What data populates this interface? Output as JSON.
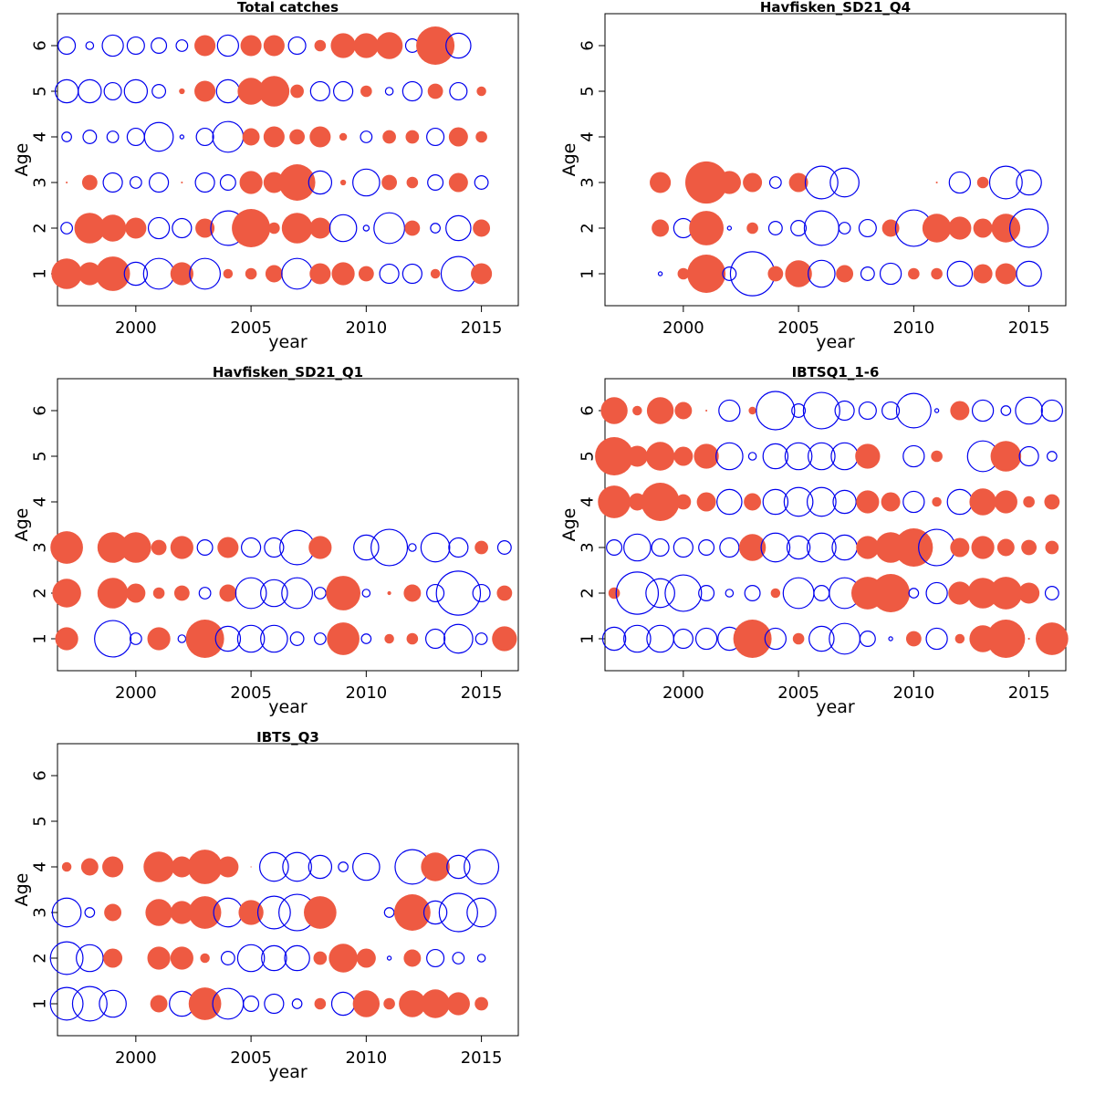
{
  "figure": {
    "colors": {
      "positive": "#ee5a42",
      "negative": "#0000ee",
      "frame": "#000000"
    }
  },
  "chart_data": [
    {
      "type": "scatter",
      "subtype": "bubble",
      "title": "Total catches",
      "xlabel": "year",
      "ylabel": "Age",
      "xlim": [
        1996.6,
        2016.6
      ],
      "ylim": [
        0.3,
        6.7
      ],
      "xticks": [
        2000,
        2005,
        2010,
        2015
      ],
      "yticks": [
        1,
        2,
        3,
        4,
        5,
        6
      ],
      "x": [
        1997,
        1998,
        1999,
        2000,
        2001,
        2002,
        2003,
        2004,
        2005,
        2006,
        2007,
        2008,
        2009,
        2010,
        2011,
        2012,
        2013,
        2014,
        2015
      ],
      "rows": [
        {
          "age": 1,
          "r": [
            0.8,
            0.6,
            0.9,
            -0.6,
            -0.8,
            0.6,
            -0.8,
            0.25,
            0.3,
            0.45,
            -0.8,
            0.55,
            0.6,
            0.4,
            -0.5,
            -0.5,
            0.25,
            -0.9,
            0.55
          ]
        },
        {
          "age": 2,
          "r": [
            -0.3,
            0.8,
            0.7,
            0.55,
            -0.55,
            -0.5,
            0.5,
            -0.9,
            1.0,
            0.3,
            0.8,
            0.55,
            -0.7,
            -0.15,
            -0.8,
            0.4,
            -0.25,
            -0.65,
            0.45
          ]
        },
        {
          "age": 3,
          "r": [
            0.05,
            0.4,
            -0.5,
            -0.3,
            -0.5,
            0.05,
            -0.5,
            -0.4,
            0.6,
            0.55,
            0.95,
            -0.6,
            0.15,
            -0.7,
            0.4,
            0.3,
            -0.4,
            0.5,
            -0.35
          ]
        },
        {
          "age": 4,
          "r": [
            -0.25,
            -0.35,
            -0.3,
            -0.45,
            -0.75,
            -0.1,
            -0.45,
            -0.8,
            0.45,
            0.55,
            0.4,
            0.55,
            0.2,
            -0.3,
            0.35,
            0.35,
            -0.45,
            0.5,
            0.3
          ]
        },
        {
          "age": 5,
          "r": [
            -0.6,
            -0.6,
            -0.45,
            -0.6,
            -0.35,
            0.15,
            0.55,
            -0.6,
            0.7,
            0.8,
            0.35,
            -0.5,
            -0.5,
            0.3,
            -0.2,
            -0.5,
            0.4,
            -0.45,
            0.25
          ]
        },
        {
          "age": 6,
          "r": [
            -0.45,
            -0.2,
            -0.55,
            -0.45,
            -0.4,
            -0.3,
            0.55,
            -0.55,
            0.55,
            0.55,
            -0.45,
            0.3,
            0.65,
            0.65,
            0.7,
            -0.35,
            1.0,
            -0.65,
            null
          ]
        }
      ]
    },
    {
      "type": "scatter",
      "subtype": "bubble",
      "title": "Havfisken_SD21_Q4",
      "xlabel": "year",
      "ylabel": "Age",
      "xlim": [
        1996.6,
        2016.6
      ],
      "ylim": [
        0.3,
        6.7
      ],
      "xticks": [
        2000,
        2005,
        2010,
        2015
      ],
      "yticks": [
        1,
        2,
        3,
        4,
        5,
        6
      ],
      "x": [
        1999,
        2000,
        2001,
        2002,
        2003,
        2004,
        2005,
        2006,
        2007,
        2008,
        2009,
        2010,
        2011,
        2012,
        2013,
        2014,
        2015
      ],
      "rows": [
        {
          "age": 1,
          "r": [
            -0.1,
            0.3,
            1.0,
            -0.35,
            -1.15,
            0.4,
            0.7,
            -0.7,
            0.45,
            -0.35,
            -0.55,
            0.3,
            0.3,
            -0.65,
            0.5,
            0.55,
            -0.65
          ]
        },
        {
          "age": 2,
          "r": [
            0.45,
            -0.5,
            0.9,
            -0.1,
            0.3,
            -0.35,
            -0.4,
            -0.9,
            -0.3,
            -0.45,
            0.45,
            -0.95,
            0.75,
            0.6,
            0.5,
            0.75,
            -1.0
          ]
        },
        {
          "age": 3,
          "r": [
            0.55,
            null,
            1.1,
            0.6,
            0.5,
            -0.3,
            0.5,
            -0.85,
            -0.75,
            null,
            null,
            null,
            0.05,
            -0.55,
            0.3,
            -0.85,
            -0.65
          ]
        }
      ]
    },
    {
      "type": "scatter",
      "subtype": "bubble",
      "title": "Havfisken_SD21_Q1",
      "xlabel": "year",
      "ylabel": "Age",
      "xlim": [
        1996.6,
        2016.6
      ],
      "ylim": [
        0.3,
        6.7
      ],
      "xticks": [
        2000,
        2005,
        2010,
        2015
      ],
      "yticks": [
        1,
        2,
        3,
        4,
        5,
        6
      ],
      "x": [
        1997,
        1999,
        2000,
        2001,
        2002,
        2003,
        2004,
        2005,
        2006,
        2007,
        2008,
        2009,
        2010,
        2011,
        2012,
        2013,
        2014,
        2015,
        2016
      ],
      "rows": [
        {
          "age": 1,
          "r": [
            0.6,
            -0.95,
            -0.3,
            0.6,
            -0.2,
            1.0,
            -0.65,
            -0.7,
            -0.7,
            -0.35,
            -0.3,
            0.85,
            -0.25,
            0.25,
            0.3,
            -0.5,
            -0.75,
            -0.3,
            0.65
          ]
        },
        {
          "age": 2,
          "r": [
            0.75,
            0.8,
            0.5,
            0.3,
            0.4,
            -0.3,
            0.45,
            -0.8,
            -0.7,
            -0.8,
            -0.3,
            0.9,
            -0.2,
            0.1,
            0.45,
            -0.45,
            -1.15,
            -0.45,
            0.4
          ]
        },
        {
          "age": 3,
          "r": [
            0.85,
            0.8,
            0.8,
            0.4,
            0.6,
            -0.4,
            0.55,
            -0.5,
            -0.5,
            -0.9,
            0.6,
            null,
            -0.65,
            -0.95,
            -0.2,
            -0.75,
            -0.5,
            0.35,
            -0.35
          ]
        }
      ]
    },
    {
      "type": "scatter",
      "subtype": "bubble",
      "title": "IBTSQ1_1-6",
      "xlabel": "year",
      "ylabel": "Age",
      "xlim": [
        1996.6,
        2016.6
      ],
      "ylim": [
        0.3,
        6.7
      ],
      "xticks": [
        2000,
        2005,
        2010,
        2015
      ],
      "yticks": [
        1,
        2,
        3,
        4,
        5,
        6
      ],
      "x": [
        1997,
        1998,
        1999,
        2000,
        2001,
        2002,
        2003,
        2004,
        2005,
        2006,
        2007,
        2008,
        2009,
        2010,
        2011,
        2012,
        2013,
        2014,
        2015,
        2016
      ],
      "rows": [
        {
          "age": 1,
          "r": [
            -0.6,
            -0.7,
            -0.7,
            -0.5,
            -0.55,
            -0.6,
            1.0,
            -0.55,
            0.3,
            -0.65,
            -0.8,
            -0.4,
            -0.1,
            0.4,
            -0.55,
            0.25,
            0.7,
            1.0,
            0.05,
            0.85
          ]
        },
        {
          "age": 2,
          "r": [
            0.3,
            -1.1,
            -0.75,
            -0.95,
            -0.4,
            -0.2,
            -0.4,
            0.25,
            -0.8,
            -0.4,
            -0.8,
            0.85,
            1.0,
            -0.25,
            -0.55,
            0.6,
            0.8,
            0.85,
            0.55,
            -0.35
          ]
        },
        {
          "age": 3,
          "r": [
            -0.4,
            -0.7,
            -0.45,
            -0.5,
            -0.4,
            -0.5,
            0.7,
            -0.75,
            -0.6,
            -0.75,
            -0.65,
            0.6,
            0.8,
            1.0,
            -0.95,
            0.5,
            0.6,
            0.45,
            0.4,
            0.35
          ]
        },
        {
          "age": 4,
          "r": [
            0.85,
            0.45,
            1.0,
            0.4,
            0.5,
            -0.65,
            0.45,
            -0.65,
            -0.75,
            -0.75,
            -0.6,
            0.6,
            0.5,
            -0.55,
            0.25,
            -0.65,
            0.7,
            0.6,
            0.3,
            0.4
          ]
        },
        {
          "age": 5,
          "r": [
            1.0,
            0.55,
            0.75,
            0.5,
            0.65,
            -0.7,
            -0.2,
            -0.65,
            -0.7,
            -0.7,
            -0.7,
            0.65,
            null,
            -0.55,
            0.3,
            null,
            -0.8,
            0.8,
            -0.5,
            -0.25
          ]
        },
        {
          "age": 6,
          "r": [
            0.7,
            0.25,
            0.7,
            0.45,
            0.05,
            -0.55,
            0.2,
            -1.0,
            -0.35,
            -0.95,
            -0.5,
            -0.45,
            -0.45,
            -0.9,
            -0.1,
            0.5,
            -0.55,
            -0.25,
            -0.7,
            -0.55
          ]
        }
      ]
    },
    {
      "type": "scatter",
      "subtype": "bubble",
      "title": "IBTS_Q3",
      "xlabel": "year",
      "ylabel": "Age",
      "xlim": [
        1996.6,
        2016.6
      ],
      "ylim": [
        0.3,
        6.7
      ],
      "xticks": [
        2000,
        2005,
        2010,
        2015
      ],
      "yticks": [
        1,
        2,
        3,
        4,
        5,
        6
      ],
      "x": [
        1997,
        1998,
        1999,
        2000,
        2001,
        2002,
        2003,
        2004,
        2005,
        2006,
        2007,
        2008,
        2009,
        2010,
        2011,
        2012,
        2013,
        2014,
        2015
      ],
      "rows": [
        {
          "age": 1,
          "r": [
            -0.85,
            -0.9,
            -0.7,
            null,
            0.45,
            -0.65,
            0.85,
            -0.8,
            -0.4,
            -0.5,
            -0.25,
            0.3,
            -0.6,
            0.7,
            0.3,
            0.7,
            0.75,
            0.6,
            0.35
          ]
        },
        {
          "age": 2,
          "r": [
            -0.85,
            -0.7,
            0.5,
            null,
            0.6,
            0.6,
            0.25,
            -0.35,
            -0.7,
            -0.65,
            -0.65,
            0.35,
            0.75,
            0.5,
            -0.1,
            0.45,
            -0.45,
            -0.3,
            -0.2
          ]
        },
        {
          "age": 3,
          "r": [
            -0.75,
            -0.25,
            0.45,
            null,
            0.7,
            0.6,
            0.85,
            -0.75,
            0.65,
            -0.85,
            -0.95,
            0.85,
            null,
            null,
            -0.25,
            0.95,
            -0.6,
            -1.0,
            -0.75
          ]
        },
        {
          "age": 4,
          "r": [
            0.25,
            0.45,
            0.55,
            null,
            0.8,
            0.55,
            0.9,
            0.55,
            0.02,
            -0.75,
            -0.75,
            -0.6,
            -0.25,
            -0.7,
            null,
            -0.9,
            0.75,
            -0.6,
            -0.9
          ]
        }
      ]
    }
  ]
}
